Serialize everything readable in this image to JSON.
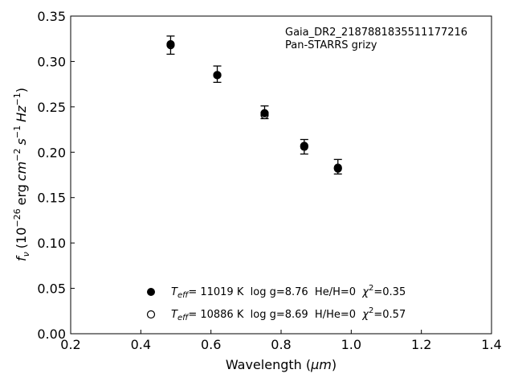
{
  "chart_data": {
    "type": "scatter",
    "xlabel_main": "Wavelength (",
    "xlabel_unit": "μm",
    "xlabel_close": ")",
    "ylabel": {
      "f": "f",
      "nu": "ν",
      "open": "(10",
      "exp1": "−26",
      "erg": "erg",
      "cm": "cm",
      "exp2": "−2",
      "s": "s",
      "exp3": "−1",
      "hz": "Hz",
      "exp4": "−1",
      "close": ")"
    },
    "xlim": [
      0.2,
      1.4
    ],
    "ylim": [
      0.0,
      0.35
    ],
    "xticks": [
      "0.2",
      "0.4",
      "0.6",
      "0.8",
      "1.0",
      "1.2",
      "1.4"
    ],
    "yticks": [
      "0.00",
      "0.05",
      "0.10",
      "0.15",
      "0.20",
      "0.25",
      "0.30",
      "0.35"
    ],
    "annotation": [
      "Gaia_DR2_2187881835511177216",
      "Pan-STARRS grizy"
    ],
    "observed": {
      "x": [
        0.485,
        0.618,
        0.753,
        0.866,
        0.962
      ],
      "y": [
        0.318,
        0.286,
        0.244,
        0.206,
        0.184
      ],
      "err": [
        0.01,
        0.009,
        0.007,
        0.008,
        0.008
      ]
    },
    "series": [
      {
        "marker": "filled",
        "legend": {
          "T": "T",
          "sub": "eff",
          "text": "= 11019 K  log g=8.76  He/H=0  ",
          "chi": "χ",
          "sup": "2",
          "val": "=0.35"
        },
        "x": [
          0.485,
          0.618,
          0.753,
          0.866,
          0.962
        ],
        "y": [
          0.319,
          0.285,
          0.243,
          0.207,
          0.182
        ]
      },
      {
        "marker": "open",
        "legend": {
          "T": "T",
          "sub": "eff",
          "text": "= 10886 K  log g=8.69  H/He=0  ",
          "chi": "χ",
          "sup": "2",
          "val": "=0.57"
        },
        "x": [
          0.485,
          0.618,
          0.753,
          0.866,
          0.962
        ],
        "y": [
          0.318,
          0.285,
          0.241,
          0.206,
          0.183
        ]
      }
    ]
  }
}
